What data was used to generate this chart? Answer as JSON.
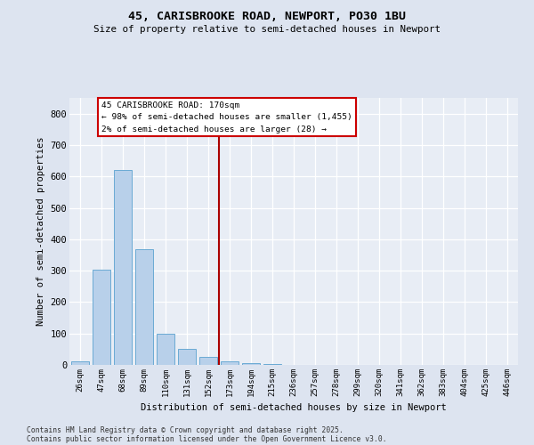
{
  "title1": "45, CARISBROOKE ROAD, NEWPORT, PO30 1BU",
  "title2": "Size of property relative to semi-detached houses in Newport",
  "xlabel": "Distribution of semi-detached houses by size in Newport",
  "ylabel": "Number of semi-detached properties",
  "categories": [
    "26sqm",
    "47sqm",
    "68sqm",
    "89sqm",
    "110sqm",
    "131sqm",
    "152sqm",
    "173sqm",
    "194sqm",
    "215sqm",
    "236sqm",
    "257sqm",
    "278sqm",
    "299sqm",
    "320sqm",
    "341sqm",
    "362sqm",
    "383sqm",
    "404sqm",
    "425sqm",
    "446sqm"
  ],
  "values": [
    10,
    303,
    620,
    368,
    100,
    50,
    25,
    10,
    7,
    2,
    1,
    0,
    0,
    0,
    0,
    0,
    0,
    0,
    0,
    0,
    0
  ],
  "bar_color": "#b8d0ea",
  "bar_edge_color": "#6aaad4",
  "vline_index": 7,
  "annotation_line1": "45 CARISBROOKE ROAD: 170sqm",
  "annotation_line2": "← 98% of semi-detached houses are smaller (1,455)",
  "annotation_line3": "2% of semi-detached houses are larger (28) →",
  "annotation_box_color": "#cc0000",
  "ylim": [
    0,
    850
  ],
  "yticks": [
    0,
    100,
    200,
    300,
    400,
    500,
    600,
    700,
    800
  ],
  "plot_bg_color": "#e8edf5",
  "fig_bg_color": "#dde4f0",
  "footer1": "Contains HM Land Registry data © Crown copyright and database right 2025.",
  "footer2": "Contains public sector information licensed under the Open Government Licence v3.0."
}
